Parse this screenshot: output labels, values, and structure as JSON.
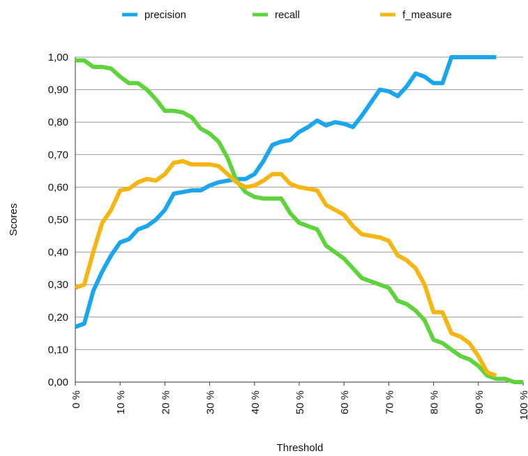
{
  "chart_data": {
    "type": "line",
    "x_label": "Threshold",
    "y_label": "Scores",
    "x": [
      0,
      2,
      4,
      6,
      8,
      10,
      12,
      14,
      16,
      18,
      20,
      22,
      24,
      26,
      28,
      30,
      32,
      34,
      36,
      38,
      40,
      42,
      44,
      46,
      48,
      50,
      52,
      54,
      56,
      58,
      60,
      62,
      64,
      66,
      68,
      70,
      72,
      74,
      76,
      78,
      80,
      82,
      84,
      86,
      88,
      90,
      92,
      94,
      96,
      98,
      100
    ],
    "series": [
      {
        "name": "precision",
        "color": "#1aa5ef",
        "values": [
          0.17,
          0.18,
          0.28,
          0.34,
          0.39,
          0.43,
          0.44,
          0.47,
          0.48,
          0.5,
          0.53,
          0.58,
          0.585,
          0.59,
          0.59,
          0.605,
          0.615,
          0.62,
          0.625,
          0.625,
          0.64,
          0.68,
          0.73,
          0.74,
          0.745,
          0.77,
          0.785,
          0.805,
          0.79,
          0.8,
          0.795,
          0.785,
          0.82,
          0.86,
          0.9,
          0.895,
          0.88,
          0.91,
          0.95,
          0.94,
          0.92,
          0.92,
          1.0,
          1.0,
          1.0,
          1.0,
          1.0,
          1.0,
          null,
          null,
          null
        ]
      },
      {
        "name": "recall",
        "color": "#5fd33b",
        "values": [
          0.99,
          0.99,
          0.97,
          0.97,
          0.965,
          0.94,
          0.92,
          0.92,
          0.9,
          0.87,
          0.835,
          0.835,
          0.83,
          0.815,
          0.78,
          0.765,
          0.74,
          0.69,
          0.62,
          0.585,
          0.57,
          0.565,
          0.565,
          0.565,
          0.52,
          0.49,
          0.48,
          0.47,
          0.42,
          0.4,
          0.38,
          0.35,
          0.32,
          0.31,
          0.3,
          0.29,
          0.25,
          0.24,
          0.22,
          0.19,
          0.13,
          0.12,
          0.1,
          0.08,
          0.07,
          0.05,
          0.02,
          0.01,
          0.01,
          0.0,
          0.0
        ]
      },
      {
        "name": "f_measure",
        "color": "#f5b512",
        "values": [
          0.29,
          0.3,
          0.4,
          0.49,
          0.53,
          0.59,
          0.595,
          0.615,
          0.625,
          0.62,
          0.64,
          0.675,
          0.68,
          0.67,
          0.67,
          0.67,
          0.665,
          0.64,
          0.615,
          0.6,
          0.605,
          0.62,
          0.64,
          0.64,
          0.61,
          0.6,
          0.595,
          0.59,
          0.545,
          0.53,
          0.515,
          0.48,
          0.455,
          0.45,
          0.445,
          0.435,
          0.39,
          0.375,
          0.35,
          0.3,
          0.215,
          0.215,
          0.15,
          0.14,
          0.12,
          0.08,
          0.03,
          0.02,
          null,
          null,
          null
        ]
      }
    ],
    "xlim": [
      0,
      100
    ],
    "xticks": [
      {
        "value": 0,
        "label": "0 %"
      },
      {
        "value": 10,
        "label": "10 %"
      },
      {
        "value": 20,
        "label": "20 %"
      },
      {
        "value": 30,
        "label": "30 %"
      },
      {
        "value": 40,
        "label": "40 %"
      },
      {
        "value": 50,
        "label": "50 %"
      },
      {
        "value": 60,
        "label": "60 %"
      },
      {
        "value": 70,
        "label": "70 %"
      },
      {
        "value": 80,
        "label": "80 %"
      },
      {
        "value": 90,
        "label": "90 %"
      },
      {
        "value": 100,
        "label": "100 %"
      }
    ],
    "ylim": [
      0,
      1
    ],
    "yticks": [
      {
        "value": 0,
        "label": "0,00"
      },
      {
        "value": 0.1,
        "label": "0,10"
      },
      {
        "value": 0.2,
        "label": "0,20"
      },
      {
        "value": 0.3,
        "label": "0,30"
      },
      {
        "value": 0.4,
        "label": "0,40"
      },
      {
        "value": 0.5,
        "label": "0,50"
      },
      {
        "value": 0.6,
        "label": "0,60"
      },
      {
        "value": 0.7,
        "label": "0,70"
      },
      {
        "value": 0.8,
        "label": "0,80"
      },
      {
        "value": 0.9,
        "label": "0,90"
      },
      {
        "value": 1,
        "label": "1,00"
      }
    ],
    "grid": true,
    "legend": "top"
  }
}
